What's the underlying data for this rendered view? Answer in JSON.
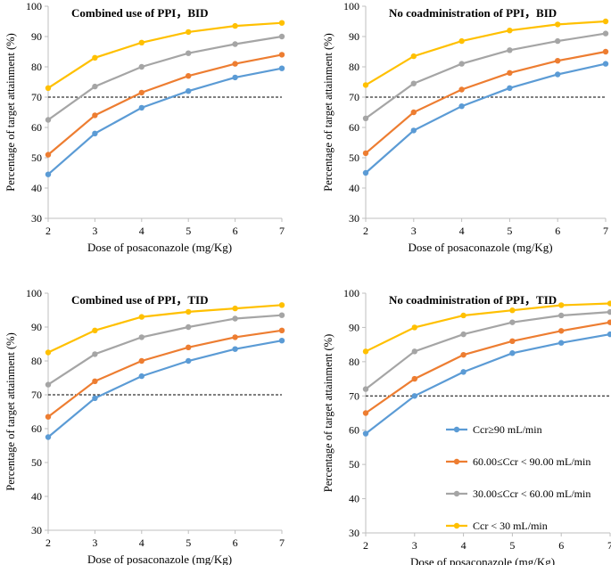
{
  "chart_data": [
    {
      "type": "line",
      "title": "Combined use of PPI，BID",
      "xlabel": "Dose of posaconazole (mg/Kg)",
      "ylabel": "Percentage of target attainment (%)",
      "x": [
        2,
        3,
        4,
        5,
        6,
        7
      ],
      "ylim": [
        30,
        100
      ],
      "yticks": [
        30,
        40,
        50,
        60,
        70,
        80,
        90,
        100
      ],
      "threshold": 70,
      "series": [
        {
          "name": "Ccr≥90 mL/min",
          "color": "#5b9bd5",
          "values": [
            44.5,
            58,
            66.5,
            72,
            76.5,
            79.5
          ]
        },
        {
          "name": "60.00≤Ccr < 90.00 mL/min",
          "color": "#ed7d31",
          "values": [
            51,
            64,
            71.5,
            77,
            81,
            84
          ]
        },
        {
          "name": "30.00≤Ccr < 60.00 mL/min",
          "color": "#a5a5a5",
          "values": [
            62.5,
            73.5,
            80,
            84.5,
            87.5,
            90
          ]
        },
        {
          "name": "Ccr < 30 mL/min",
          "color": "#ffc000",
          "values": [
            73,
            83,
            88,
            91.5,
            93.5,
            94.5
          ]
        }
      ]
    },
    {
      "type": "line",
      "title": "No coadministration of PPI，BID",
      "xlabel": "Dose of posaconazole (mg/Kg)",
      "ylabel": "Percentage of target attainment (%)",
      "x": [
        2,
        3,
        4,
        5,
        6,
        7
      ],
      "ylim": [
        30,
        100
      ],
      "yticks": [
        30,
        40,
        50,
        60,
        70,
        80,
        90,
        100
      ],
      "threshold": 70,
      "series": [
        {
          "name": "Ccr≥90 mL/min",
          "color": "#5b9bd5",
          "values": [
            45,
            59,
            67,
            73,
            77.5,
            81
          ]
        },
        {
          "name": "60.00≤Ccr < 90.00 mL/min",
          "color": "#ed7d31",
          "values": [
            51.5,
            65,
            72.5,
            78,
            82,
            85
          ]
        },
        {
          "name": "30.00≤Ccr < 60.00 mL/min",
          "color": "#a5a5a5",
          "values": [
            63,
            74.5,
            81,
            85.5,
            88.5,
            91
          ]
        },
        {
          "name": "Ccr < 30 mL/min",
          "color": "#ffc000",
          "values": [
            74,
            83.5,
            88.5,
            92,
            94,
            95
          ]
        }
      ]
    },
    {
      "type": "line",
      "title": "Combined use of PPI，TID",
      "xlabel": "Dose of posaconazole (mg/Kg)",
      "ylabel": "Percentage of target attainment (%)",
      "x": [
        2,
        3,
        4,
        5,
        6,
        7
      ],
      "ylim": [
        30,
        100
      ],
      "yticks": [
        30,
        40,
        50,
        60,
        70,
        80,
        90,
        100
      ],
      "threshold": 70,
      "series": [
        {
          "name": "Ccr≥90 mL/min",
          "color": "#5b9bd5",
          "values": [
            57.5,
            69,
            75.5,
            80,
            83.5,
            86
          ]
        },
        {
          "name": "60.00≤Ccr < 90.00 mL/min",
          "color": "#ed7d31",
          "values": [
            63.5,
            74,
            80,
            84,
            87,
            89
          ]
        },
        {
          "name": "30.00≤Ccr < 60.00 mL/min",
          "color": "#a5a5a5",
          "values": [
            73,
            82,
            87,
            90,
            92.5,
            93.5
          ]
        },
        {
          "name": "Ccr < 30 mL/min",
          "color": "#ffc000",
          "values": [
            82.5,
            89,
            93,
            94.5,
            95.5,
            96.5
          ]
        }
      ]
    },
    {
      "type": "line",
      "title": "No coadministration of PPI，TID",
      "xlabel": "Dose of posaconazole (mg/Kg)",
      "ylabel": "Percentage of target attainment (%)",
      "x": [
        2,
        3,
        4,
        5,
        6,
        7
      ],
      "ylim": [
        30,
        100
      ],
      "yticks": [
        30,
        40,
        50,
        60,
        70,
        80,
        90,
        100
      ],
      "threshold": 70,
      "legend_location": "lower-right",
      "series": [
        {
          "name": "Ccr≥90 mL/min",
          "color": "#5b9bd5",
          "values": [
            59,
            70,
            77,
            82.5,
            85.5,
            88
          ]
        },
        {
          "name": "60.00≤Ccr < 90.00 mL/min",
          "color": "#ed7d31",
          "values": [
            65,
            75,
            82,
            86,
            89,
            91.5
          ]
        },
        {
          "name": "30.00≤Ccr < 60.00 mL/min",
          "color": "#a5a5a5",
          "values": [
            72,
            83,
            88,
            91.5,
            93.5,
            94.5
          ]
        },
        {
          "name": "Ccr < 30 mL/min",
          "color": "#ffc000",
          "values": [
            83,
            90,
            93.5,
            95,
            96.5,
            97
          ]
        }
      ]
    }
  ]
}
